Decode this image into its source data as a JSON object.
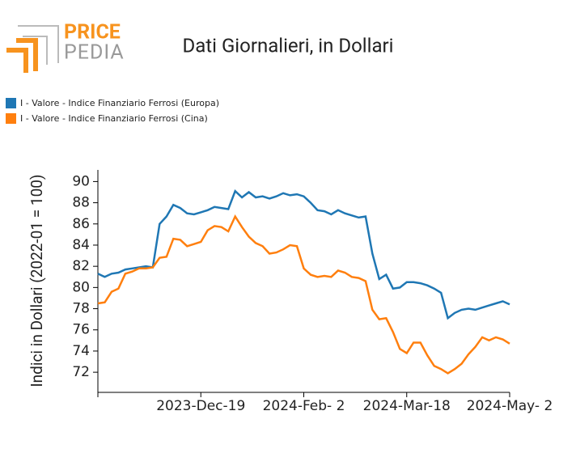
{
  "logo": {
    "line1": "PRICE",
    "line2": "PEDIA"
  },
  "chart_data": {
    "type": "line",
    "title": "Dati Giornalieri, in Dollari",
    "ylabel": "Indici in Dollari (2022-01 = 100)",
    "x": [
      "2023-11-04",
      "2023-11-07",
      "2023-11-10",
      "2023-11-13",
      "2023-11-16",
      "2023-11-19",
      "2023-11-22",
      "2023-11-25",
      "2023-11-28",
      "2023-12-01",
      "2023-12-04",
      "2023-12-07",
      "2023-12-10",
      "2023-12-13",
      "2023-12-16",
      "2023-12-19",
      "2023-12-22",
      "2023-12-25",
      "2023-12-28",
      "2023-12-31",
      "2024-01-03",
      "2024-01-06",
      "2024-01-09",
      "2024-01-12",
      "2024-01-15",
      "2024-01-18",
      "2024-01-21",
      "2024-01-24",
      "2024-01-27",
      "2024-01-30",
      "2024-02-02",
      "2024-02-05",
      "2024-02-08",
      "2024-02-11",
      "2024-02-14",
      "2024-02-17",
      "2024-02-20",
      "2024-02-23",
      "2024-02-26",
      "2024-02-29",
      "2024-03-03",
      "2024-03-06",
      "2024-03-09",
      "2024-03-12",
      "2024-03-15",
      "2024-03-18",
      "2024-03-21",
      "2024-03-24",
      "2024-03-27",
      "2024-03-30",
      "2024-04-02",
      "2024-04-05",
      "2024-04-08",
      "2024-04-11",
      "2024-04-14",
      "2024-04-17",
      "2024-04-20",
      "2024-04-23",
      "2024-04-26",
      "2024-04-29",
      "2024-05-02"
    ],
    "series": [
      {
        "name": "I - Valore - Indice Finanziario Ferrosi (Europa)",
        "color": "#1f77b4",
        "values": [
          81.3,
          81.0,
          81.3,
          81.4,
          81.7,
          81.8,
          81.9,
          82.0,
          81.9,
          86.0,
          86.7,
          87.8,
          87.5,
          87.0,
          86.9,
          87.1,
          87.3,
          87.6,
          87.5,
          87.4,
          89.1,
          88.5,
          89.0,
          88.5,
          88.6,
          88.4,
          88.6,
          88.9,
          88.7,
          88.8,
          88.6,
          88.0,
          87.3,
          87.2,
          86.9,
          87.3,
          87.0,
          86.8,
          86.6,
          86.7,
          83.2,
          80.8,
          81.2,
          79.9,
          80.0,
          80.5,
          80.5,
          80.4,
          80.2,
          79.9,
          79.5,
          77.1,
          77.6,
          77.9,
          78.0,
          77.9,
          78.1,
          78.3,
          78.5,
          78.7,
          78.4
        ]
      },
      {
        "name": "I - Valore - Indice Finanziario Ferrosi (Cina)",
        "color": "#ff7f0e",
        "values": [
          78.5,
          78.6,
          79.6,
          79.9,
          81.3,
          81.5,
          81.8,
          81.8,
          81.9,
          82.8,
          82.9,
          84.6,
          84.5,
          83.9,
          84.1,
          84.3,
          85.4,
          85.8,
          85.7,
          85.3,
          86.7,
          85.7,
          84.8,
          84.2,
          83.9,
          83.2,
          83.3,
          83.6,
          84.0,
          83.9,
          81.8,
          81.2,
          81.0,
          81.1,
          81.0,
          81.6,
          81.4,
          81.0,
          80.9,
          80.6,
          77.9,
          77.0,
          77.1,
          75.8,
          74.2,
          73.8,
          74.8,
          74.8,
          73.6,
          72.6,
          72.3,
          71.9,
          72.3,
          72.8,
          73.7,
          74.4,
          75.3,
          75.0,
          75.3,
          75.1,
          74.7
        ]
      }
    ],
    "xlim": [
      "2023-11-04",
      "2024-05-02"
    ],
    "xticks": [
      {
        "value": "2023-12-19",
        "label": "2023-Dec-19"
      },
      {
        "value": "2024-02-02",
        "label": "2024-Feb- 2"
      },
      {
        "value": "2024-03-18",
        "label": "2024-Mar-18"
      },
      {
        "value": "2024-05-02",
        "label": "2024-May- 2"
      }
    ],
    "ylim": [
      70.1,
      91.1
    ],
    "yticks": [
      72,
      74,
      76,
      78,
      80,
      82,
      84,
      86,
      88,
      90
    ],
    "grid": false,
    "legend": "top-left"
  }
}
